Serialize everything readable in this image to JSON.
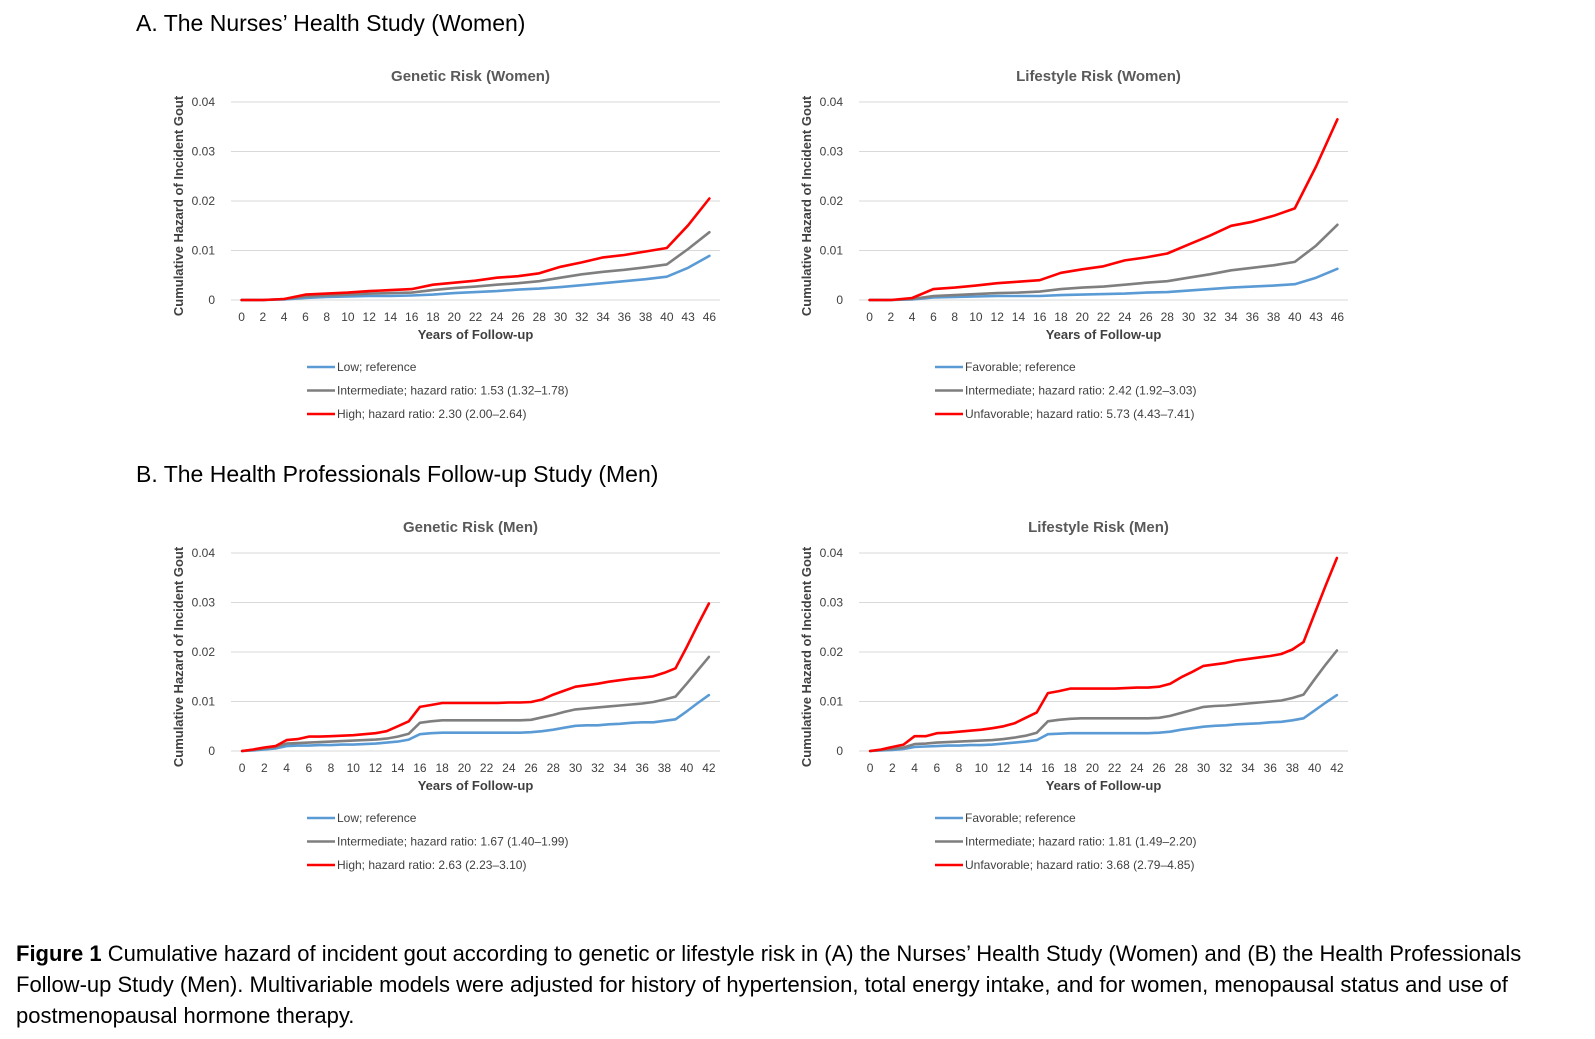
{
  "section_a_title": "A. The Nurses’ Health Study (Women)",
  "section_b_title": "B. The Health Professionals Follow-up Study (Men)",
  "caption": {
    "label": "Figure 1",
    "text": "Cumulative hazard of incident gout according to genetic or lifestyle risk in (A) the Nurses’ Health Study (Women) and (B) the Health Professionals Follow-up Study (Men). Multivariable models were adjusted for history of hypertension, total energy intake, and for women, menopausal status and use of postmenopausal hormone therapy."
  },
  "colors": {
    "low": "#5b9bd5",
    "intermediate": "#7f7f7f",
    "high": "#ff0000"
  },
  "chart_data": [
    {
      "type": "line",
      "title": "Genetic Risk (Women)",
      "xlabel": "Years of Follow-up",
      "ylabel": "Cumulative Hazard of Incident Gout",
      "ylim": [
        0,
        0.04
      ],
      "yticks": [
        "0",
        "0.01",
        "0.02",
        "0.03",
        "0.04"
      ],
      "xticks": [
        "0",
        "2",
        "4",
        "6",
        "8",
        "10",
        "12",
        "14",
        "16",
        "18",
        "20",
        "22",
        "24",
        "26",
        "28",
        "30",
        "32",
        "34",
        "36",
        "38",
        "40",
        "43",
        "46"
      ],
      "grid": true,
      "legend": "bottom",
      "series": [
        {
          "name": "Low; reference",
          "color": "#5b9bd5",
          "values": [
            0,
            0,
            0.0001,
            0.0004,
            0.0006,
            0.0007,
            0.0008,
            0.0008,
            0.0009,
            0.0011,
            0.0014,
            0.0016,
            0.0018,
            0.0021,
            0.0023,
            0.0026,
            0.003,
            0.0034,
            0.0038,
            0.0042,
            0.0047,
            0.0065,
            0.0089
          ]
        },
        {
          "name": "Intermediate; hazard ratio: 1.53 (1.32–1.78)",
          "color": "#7f7f7f",
          "values": [
            0,
            0,
            0.0002,
            0.0007,
            0.0009,
            0.0011,
            0.0013,
            0.0014,
            0.0015,
            0.002,
            0.0024,
            0.0027,
            0.0031,
            0.0034,
            0.0038,
            0.0045,
            0.0052,
            0.0057,
            0.0061,
            0.0066,
            0.0072,
            0.0103,
            0.0137
          ]
        },
        {
          "name": "High; hazard ratio: 2.30 (2.00–2.64)",
          "color": "#ff0000",
          "values": [
            0,
            0,
            0.0002,
            0.0011,
            0.0013,
            0.0015,
            0.0018,
            0.002,
            0.0022,
            0.0031,
            0.0035,
            0.0039,
            0.0045,
            0.0048,
            0.0054,
            0.0067,
            0.0076,
            0.0086,
            0.0091,
            0.0098,
            0.0105,
            0.0151,
            0.0205
          ]
        }
      ]
    },
    {
      "type": "line",
      "title": "Lifestyle Risk (Women)",
      "xlabel": "Years of Follow-up",
      "ylabel": "Cumulative Hazard of Incident Gout",
      "ylim": [
        0,
        0.04
      ],
      "yticks": [
        "0",
        "0.01",
        "0.02",
        "0.03",
        "0.04"
      ],
      "xticks": [
        "0",
        "2",
        "4",
        "6",
        "8",
        "10",
        "12",
        "14",
        "16",
        "18",
        "20",
        "22",
        "24",
        "26",
        "28",
        "30",
        "32",
        "34",
        "36",
        "38",
        "40",
        "43",
        "46"
      ],
      "grid": true,
      "legend": "bottom",
      "series": [
        {
          "name": "Favorable; reference",
          "color": "#5b9bd5",
          "values": [
            0,
            0,
            0.0001,
            0.0005,
            0.0006,
            0.0007,
            0.0008,
            0.0008,
            0.0008,
            0.001,
            0.0011,
            0.0012,
            0.0013,
            0.0015,
            0.0016,
            0.0019,
            0.0022,
            0.0025,
            0.0027,
            0.0029,
            0.0032,
            0.0045,
            0.0063
          ]
        },
        {
          "name": "Intermediate; hazard ratio: 2.42 (1.92–3.03)",
          "color": "#7f7f7f",
          "values": [
            0,
            0,
            0.0002,
            0.0008,
            0.001,
            0.0012,
            0.0014,
            0.0015,
            0.0017,
            0.0022,
            0.0025,
            0.0027,
            0.0031,
            0.0035,
            0.0038,
            0.0045,
            0.0052,
            0.006,
            0.0065,
            0.007,
            0.0077,
            0.011,
            0.0152
          ]
        },
        {
          "name": "Unfavorable; hazard ratio: 5.73 (4.43–7.41)",
          "color": "#ff0000",
          "values": [
            0,
            0,
            0.0004,
            0.0022,
            0.0025,
            0.0029,
            0.0034,
            0.0037,
            0.004,
            0.0055,
            0.0062,
            0.0068,
            0.008,
            0.0086,
            0.0094,
            0.0112,
            0.013,
            0.015,
            0.0158,
            0.017,
            0.0185,
            0.027,
            0.0365
          ]
        }
      ]
    },
    {
      "type": "line",
      "title": "Genetic Risk (Men)",
      "xlabel": "Years of Follow-up",
      "ylabel": "Cumulative Hazard of Incident Gout",
      "ylim": [
        0,
        0.04
      ],
      "yticks": [
        "0",
        "0.01",
        "0.02",
        "0.03",
        "0.04"
      ],
      "xticks": [
        "0",
        "2",
        "4",
        "6",
        "8",
        "10",
        "12",
        "14",
        "16",
        "18",
        "20",
        "22",
        "24",
        "26",
        "28",
        "30",
        "32",
        "34",
        "36",
        "38",
        "40",
        "42"
      ],
      "grid": true,
      "legend": "bottom",
      "series": [
        {
          "name": "Low; reference",
          "color": "#5b9bd5",
          "x": [
            0,
            1,
            2,
            3,
            4,
            5,
            6,
            7,
            8,
            9,
            10,
            11,
            12,
            13,
            14,
            15,
            16,
            17,
            18,
            19,
            20,
            21,
            22,
            23,
            24,
            25,
            26,
            27,
            28,
            29,
            30,
            31,
            32,
            33,
            34,
            35,
            36,
            37,
            38,
            39,
            40,
            41,
            42
          ],
          "values": [
            0,
            0.0001,
            0.0003,
            0.0005,
            0.001,
            0.0011,
            0.0011,
            0.0012,
            0.0012,
            0.0013,
            0.0013,
            0.0014,
            0.0015,
            0.0017,
            0.0019,
            0.0023,
            0.0034,
            0.0036,
            0.0037,
            0.0037,
            0.0037,
            0.0037,
            0.0037,
            0.0037,
            0.0037,
            0.0037,
            0.0038,
            0.004,
            0.0043,
            0.0047,
            0.0051,
            0.0052,
            0.0052,
            0.0054,
            0.0055,
            0.0057,
            0.0058,
            0.0058,
            0.0061,
            0.0064,
            0.008,
            0.0097,
            0.0113
          ]
        },
        {
          "name": "Intermediate; hazard ratio: 1.67 (1.40–1.99)",
          "color": "#7f7f7f",
          "x": [
            0,
            1,
            2,
            3,
            4,
            5,
            6,
            7,
            8,
            9,
            10,
            11,
            12,
            13,
            14,
            15,
            16,
            17,
            18,
            19,
            20,
            21,
            22,
            23,
            24,
            25,
            26,
            27,
            28,
            29,
            30,
            31,
            32,
            33,
            34,
            35,
            36,
            37,
            38,
            39,
            40,
            41,
            42
          ],
          "values": [
            0,
            0.0002,
            0.0005,
            0.0008,
            0.0015,
            0.0016,
            0.0017,
            0.0018,
            0.0019,
            0.002,
            0.0021,
            0.0022,
            0.0023,
            0.0025,
            0.0029,
            0.0035,
            0.0057,
            0.006,
            0.0062,
            0.0062,
            0.0062,
            0.0062,
            0.0062,
            0.0062,
            0.0062,
            0.0062,
            0.0063,
            0.0068,
            0.0073,
            0.0079,
            0.0084,
            0.0086,
            0.0088,
            0.009,
            0.0092,
            0.0094,
            0.0096,
            0.0099,
            0.0104,
            0.011,
            0.0136,
            0.0163,
            0.019
          ]
        },
        {
          "name": "High; hazard ratio: 2.63 (2.23–3.10)",
          "color": "#ff0000",
          "x": [
            0,
            1,
            2,
            3,
            4,
            5,
            6,
            7,
            8,
            9,
            10,
            11,
            12,
            13,
            14,
            15,
            16,
            17,
            18,
            19,
            20,
            21,
            22,
            23,
            24,
            25,
            26,
            27,
            28,
            29,
            30,
            31,
            32,
            33,
            34,
            35,
            36,
            37,
            38,
            39,
            40,
            41,
            42
          ],
          "values": [
            0,
            0.0003,
            0.0007,
            0.001,
            0.0022,
            0.0024,
            0.0029,
            0.0029,
            0.003,
            0.0031,
            0.0032,
            0.0034,
            0.0036,
            0.004,
            0.005,
            0.006,
            0.0089,
            0.0093,
            0.0097,
            0.0097,
            0.0097,
            0.0097,
            0.0097,
            0.0097,
            0.0098,
            0.0098,
            0.0099,
            0.0104,
            0.0114,
            0.0122,
            0.013,
            0.0133,
            0.0136,
            0.014,
            0.0143,
            0.0146,
            0.0148,
            0.0151,
            0.0158,
            0.0167,
            0.021,
            0.0255,
            0.0298
          ]
        }
      ]
    },
    {
      "type": "line",
      "title": "Lifestyle Risk (Men)",
      "xlabel": "Years of Follow-up",
      "ylabel": "Cumulative Hazard of Incident Gout",
      "ylim": [
        0,
        0.04
      ],
      "yticks": [
        "0",
        "0.01",
        "0.02",
        "0.03",
        "0.04"
      ],
      "xticks": [
        "0",
        "2",
        "4",
        "6",
        "8",
        "10",
        "12",
        "14",
        "16",
        "18",
        "20",
        "22",
        "24",
        "26",
        "28",
        "30",
        "32",
        "34",
        "36",
        "38",
        "40",
        "42"
      ],
      "grid": true,
      "legend": "bottom",
      "series": [
        {
          "name": "Favorable; reference",
          "color": "#5b9bd5",
          "x": [
            0,
            1,
            2,
            3,
            4,
            5,
            6,
            7,
            8,
            9,
            10,
            11,
            12,
            13,
            14,
            15,
            16,
            17,
            18,
            19,
            20,
            21,
            22,
            23,
            24,
            25,
            26,
            27,
            28,
            29,
            30,
            31,
            32,
            33,
            34,
            35,
            36,
            37,
            38,
            39,
            40,
            41,
            42
          ],
          "values": [
            0,
            0.0001,
            0.0002,
            0.0004,
            0.0008,
            0.0009,
            0.001,
            0.0011,
            0.0011,
            0.0012,
            0.0012,
            0.0013,
            0.0015,
            0.0017,
            0.0019,
            0.0022,
            0.0034,
            0.0035,
            0.0036,
            0.0036,
            0.0036,
            0.0036,
            0.0036,
            0.0036,
            0.0036,
            0.0036,
            0.0037,
            0.0039,
            0.0043,
            0.0046,
            0.0049,
            0.0051,
            0.0052,
            0.0054,
            0.0055,
            0.0056,
            0.0058,
            0.0059,
            0.0062,
            0.0066,
            0.0082,
            0.0098,
            0.0113
          ]
        },
        {
          "name": "Intermediate; hazard ratio: 1.81 (1.49–2.20)",
          "color": "#7f7f7f",
          "x": [
            0,
            1,
            2,
            3,
            4,
            5,
            6,
            7,
            8,
            9,
            10,
            11,
            12,
            13,
            14,
            15,
            16,
            17,
            18,
            19,
            20,
            21,
            22,
            23,
            24,
            25,
            26,
            27,
            28,
            29,
            30,
            31,
            32,
            33,
            34,
            35,
            36,
            37,
            38,
            39,
            40,
            41,
            42
          ],
          "values": [
            0,
            0.0002,
            0.0004,
            0.0007,
            0.0014,
            0.0015,
            0.0017,
            0.0018,
            0.0019,
            0.002,
            0.0021,
            0.0022,
            0.0024,
            0.0027,
            0.0031,
            0.0037,
            0.006,
            0.0063,
            0.0065,
            0.0066,
            0.0066,
            0.0066,
            0.0066,
            0.0066,
            0.0066,
            0.0066,
            0.0067,
            0.0071,
            0.0077,
            0.0083,
            0.0089,
            0.0091,
            0.0092,
            0.0094,
            0.0096,
            0.0098,
            0.01,
            0.0102,
            0.0107,
            0.0114,
            0.0145,
            0.0175,
            0.0203
          ]
        },
        {
          "name": "Unfavorable; hazard ratio: 3.68 (2.79–4.85)",
          "color": "#ff0000",
          "x": [
            0,
            1,
            2,
            3,
            4,
            5,
            6,
            7,
            8,
            9,
            10,
            11,
            12,
            13,
            14,
            15,
            16,
            17,
            18,
            19,
            20,
            21,
            22,
            23,
            24,
            25,
            26,
            27,
            28,
            29,
            30,
            31,
            32,
            33,
            34,
            35,
            36,
            37,
            38,
            39,
            40,
            41,
            42
          ],
          "values": [
            0,
            0.0003,
            0.0008,
            0.0013,
            0.003,
            0.003,
            0.0036,
            0.0037,
            0.0039,
            0.0041,
            0.0043,
            0.0046,
            0.005,
            0.0056,
            0.0067,
            0.0078,
            0.0117,
            0.0121,
            0.0126,
            0.0126,
            0.0126,
            0.0126,
            0.0126,
            0.0127,
            0.0128,
            0.0128,
            0.013,
            0.0136,
            0.0149,
            0.016,
            0.0172,
            0.0175,
            0.0178,
            0.0183,
            0.0186,
            0.0189,
            0.0192,
            0.0196,
            0.0205,
            0.022,
            0.0278,
            0.0335,
            0.039
          ]
        }
      ]
    }
  ]
}
